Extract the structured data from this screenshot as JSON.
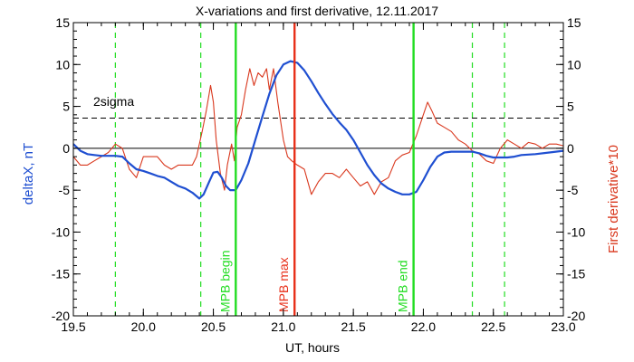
{
  "chart_data": {
    "type": "line",
    "title": "X-variations and first derivative, 12.11.2017",
    "xlabel": "UT, hours",
    "ylabel_left": "deltaX, nT",
    "ylabel_right": "First derivative*10",
    "xlim": [
      19.5,
      23.0
    ],
    "ylim": [
      -20,
      15
    ],
    "x_ticks": [
      "19.5",
      "20.0",
      "20.5",
      "21.0",
      "21.5",
      "22.0",
      "22.5",
      "23.0"
    ],
    "y_ticks": [
      "15",
      "10",
      "5",
      "0",
      "-5",
      "-10",
      "-15",
      "-20"
    ],
    "grid": false,
    "colors": {
      "deltaX": "#1f4fd1",
      "derivative": "#d9381e",
      "mpb": "#22dd22",
      "mpb_max": "#e8301a",
      "axes": "#000000"
    },
    "sigma_label": "2sigma",
    "sigma_level": 3.6,
    "zero_level": 0,
    "dashed_lines_x": [
      19.8,
      20.41,
      22.35,
      22.58
    ],
    "markers": [
      {
        "label": "MPB begin",
        "x": 20.66
      },
      {
        "label": "MPB max",
        "x": 21.08
      },
      {
        "label": "MPB end",
        "x": 21.93
      }
    ],
    "series": [
      {
        "name": "deltaX, nT",
        "x": [
          19.5,
          19.55,
          19.6,
          19.65,
          19.7,
          19.75,
          19.8,
          19.85,
          19.9,
          19.95,
          20.0,
          20.05,
          20.1,
          20.15,
          20.2,
          20.25,
          20.3,
          20.35,
          20.4,
          20.43,
          20.47,
          20.5,
          20.53,
          20.56,
          20.59,
          20.62,
          20.66,
          20.7,
          20.75,
          20.8,
          20.85,
          20.9,
          20.95,
          21.0,
          21.05,
          21.1,
          21.15,
          21.2,
          21.25,
          21.3,
          21.35,
          21.4,
          21.45,
          21.5,
          21.55,
          21.6,
          21.65,
          21.7,
          21.75,
          21.8,
          21.85,
          21.9,
          21.95,
          22.0,
          22.05,
          22.1,
          22.15,
          22.2,
          22.25,
          22.3,
          22.35,
          22.4,
          22.45,
          22.5,
          22.55,
          22.6,
          22.65,
          22.7,
          22.8,
          22.9,
          23.0
        ],
        "y": [
          0.5,
          -0.3,
          -0.7,
          -0.8,
          -0.9,
          -0.9,
          -0.9,
          -1.0,
          -1.8,
          -2.5,
          -2.7,
          -3.0,
          -3.3,
          -3.5,
          -4.0,
          -4.5,
          -4.8,
          -5.3,
          -6.0,
          -5.5,
          -4.0,
          -2.9,
          -2.8,
          -3.5,
          -4.5,
          -5.0,
          -5.0,
          -3.8,
          -1.8,
          1.0,
          3.8,
          6.5,
          8.7,
          10.0,
          10.4,
          10.2,
          9.3,
          8.0,
          6.6,
          5.3,
          4.1,
          3.1,
          2.2,
          1.0,
          -0.5,
          -2.0,
          -3.2,
          -4.2,
          -4.8,
          -5.2,
          -5.5,
          -5.5,
          -5.2,
          -3.8,
          -2.2,
          -1.0,
          -0.5,
          -0.4,
          -0.4,
          -0.4,
          -0.4,
          -0.6,
          -0.9,
          -1.1,
          -1.1,
          -1.1,
          -1.0,
          -0.8,
          -0.7,
          -0.5,
          -0.3
        ]
      },
      {
        "name": "First derivative*10",
        "x": [
          19.5,
          19.55,
          19.6,
          19.65,
          19.7,
          19.75,
          19.8,
          19.85,
          19.9,
          19.95,
          20.0,
          20.05,
          20.1,
          20.15,
          20.2,
          20.25,
          20.3,
          20.35,
          20.38,
          20.42,
          20.45,
          20.48,
          20.5,
          20.52,
          20.55,
          20.58,
          20.6,
          20.63,
          20.65,
          20.67,
          20.7,
          20.73,
          20.76,
          20.79,
          20.82,
          20.85,
          20.88,
          20.9,
          20.93,
          20.96,
          21.0,
          21.03,
          21.06,
          21.1,
          21.15,
          21.2,
          21.25,
          21.3,
          21.35,
          21.4,
          21.45,
          21.5,
          21.55,
          21.6,
          21.65,
          21.7,
          21.75,
          21.8,
          21.85,
          21.9,
          21.95,
          22.0,
          22.03,
          22.06,
          22.1,
          22.15,
          22.2,
          22.25,
          22.3,
          22.35,
          22.4,
          22.45,
          22.5,
          22.55,
          22.6,
          22.65,
          22.7,
          22.75,
          22.8,
          22.85,
          22.9,
          22.95,
          23.0
        ],
        "y": [
          -1.0,
          -2.0,
          -2.0,
          -1.5,
          -1.0,
          -0.5,
          0.5,
          0.0,
          -2.5,
          -3.5,
          -1.0,
          -1.0,
          -1.0,
          -2.0,
          -2.5,
          -2.0,
          -2.0,
          -2.0,
          -1.0,
          2.0,
          4.5,
          7.5,
          5.5,
          1.0,
          -3.0,
          -5.0,
          -2.0,
          0.5,
          -1.5,
          2.5,
          4.0,
          7.0,
          9.5,
          7.5,
          9.0,
          8.5,
          9.5,
          7.0,
          9.5,
          5.5,
          1.0,
          -1.0,
          -1.5,
          -2.0,
          -2.5,
          -5.5,
          -4.0,
          -3.0,
          -3.0,
          -3.5,
          -2.5,
          -3.5,
          -4.5,
          -4.0,
          -5.5,
          -4.0,
          -3.5,
          -1.5,
          -0.8,
          -0.5,
          1.5,
          4.0,
          5.5,
          4.5,
          3.0,
          2.5,
          2.0,
          1.0,
          0.5,
          -0.3,
          -0.7,
          -1.5,
          -1.8,
          0.0,
          1.0,
          0.5,
          0.0,
          0.7,
          0.5,
          0.0,
          0.5,
          0.5,
          0.3
        ]
      }
    ]
  }
}
